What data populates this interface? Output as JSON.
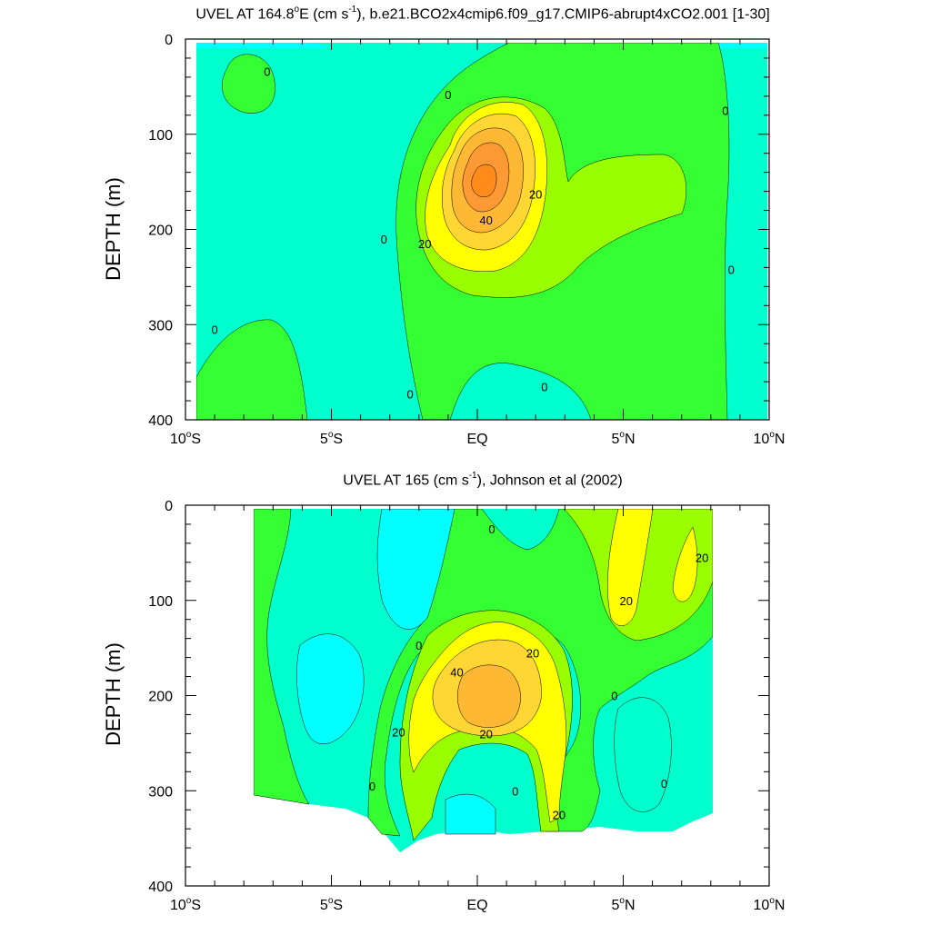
{
  "chart_data": [
    {
      "type": "contour",
      "title_prefix": "UVEL AT 164.8",
      "title_unit": "E (cm s",
      "title_suffix": "), b.e21.BCO2x4cmip6.f09_g17.CMIP6-abrupt4xCO2.001 [1-30]",
      "ylabel": "DEPTH (m)",
      "xlim": [
        -10,
        10
      ],
      "ylim": [
        400,
        0
      ],
      "y_ticks": [
        "0",
        "100",
        "200",
        "300",
        "400"
      ],
      "x_ticks": [
        {
          "value": -10,
          "label": "10",
          "deg": "o",
          "hemi": "S"
        },
        {
          "value": -5,
          "label": "5",
          "deg": "o",
          "hemi": "S"
        },
        {
          "value": 0,
          "label": "EQ",
          "deg": "",
          "hemi": ""
        },
        {
          "value": 5,
          "label": "5",
          "deg": "o",
          "hemi": "N"
        },
        {
          "value": 10,
          "label": "10",
          "deg": "o",
          "hemi": "N"
        }
      ],
      "contour_levels": [
        -10,
        0,
        10,
        20,
        30,
        40,
        50
      ],
      "level_colors": [
        "#00ffff",
        "#00ffcc",
        "#33ff33",
        "#99ff00",
        "#ffff00",
        "#ffd633",
        "#ffb833",
        "#ff9933"
      ],
      "contour_labels": [
        {
          "x": -7.2,
          "y": 34,
          "text": "0"
        },
        {
          "x": -1.0,
          "y": 58,
          "text": "0"
        },
        {
          "x": 8.5,
          "y": 75,
          "text": "0"
        },
        {
          "x": -3.2,
          "y": 210,
          "text": "0"
        },
        {
          "x": 8.7,
          "y": 242,
          "text": "0"
        },
        {
          "x": -9.0,
          "y": 305,
          "text": "0"
        },
        {
          "x": -2.3,
          "y": 373,
          "text": "0"
        },
        {
          "x": 2.3,
          "y": 365,
          "text": "0"
        },
        {
          "x": 2.0,
          "y": 163,
          "text": "20"
        },
        {
          "x": -1.8,
          "y": 215,
          "text": "20"
        },
        {
          "x": 0.3,
          "y": 190,
          "text": "40"
        }
      ]
    },
    {
      "type": "contour",
      "title_prefix": "UVEL AT 165 (cm s",
      "title_unit": "",
      "title_suffix": "), Johnson et al (2002)",
      "ylabel": "DEPTH (m)",
      "xlim": [
        -10,
        10
      ],
      "ylim": [
        400,
        0
      ],
      "y_ticks": [
        "0",
        "100",
        "200",
        "300",
        "400"
      ],
      "x_ticks": [
        {
          "value": -10,
          "label": "10",
          "deg": "o",
          "hemi": "S"
        },
        {
          "value": -5,
          "label": "5",
          "deg": "o",
          "hemi": "S"
        },
        {
          "value": 0,
          "label": "EQ",
          "deg": "",
          "hemi": ""
        },
        {
          "value": 5,
          "label": "5",
          "deg": "o",
          "hemi": "N"
        },
        {
          "value": 10,
          "label": "10",
          "deg": "o",
          "hemi": "N"
        }
      ],
      "contour_levels": [
        -10,
        0,
        10,
        20,
        30,
        40
      ],
      "level_colors": [
        "#00ffff",
        "#00ffcc",
        "#33ff33",
        "#99ff00",
        "#ffff00",
        "#ffd633",
        "#ffb833"
      ],
      "contour_labels": [
        {
          "x": 0.5,
          "y": 25,
          "text": "0"
        },
        {
          "x": -2.0,
          "y": 147,
          "text": "0"
        },
        {
          "x": 4.7,
          "y": 200,
          "text": "0"
        },
        {
          "x": -3.6,
          "y": 295,
          "text": "0"
        },
        {
          "x": 1.3,
          "y": 300,
          "text": "0"
        },
        {
          "x": 6.4,
          "y": 292,
          "text": "0"
        },
        {
          "x": 7.7,
          "y": 55,
          "text": "20"
        },
        {
          "x": 5.1,
          "y": 100,
          "text": "20"
        },
        {
          "x": 1.9,
          "y": 155,
          "text": "20"
        },
        {
          "x": -2.7,
          "y": 238,
          "text": "20"
        },
        {
          "x": 0.3,
          "y": 240,
          "text": "20"
        },
        {
          "x": 2.8,
          "y": 325,
          "text": "20"
        },
        {
          "x": -0.7,
          "y": 175,
          "text": "40"
        }
      ]
    }
  ],
  "title_sup": "-1"
}
